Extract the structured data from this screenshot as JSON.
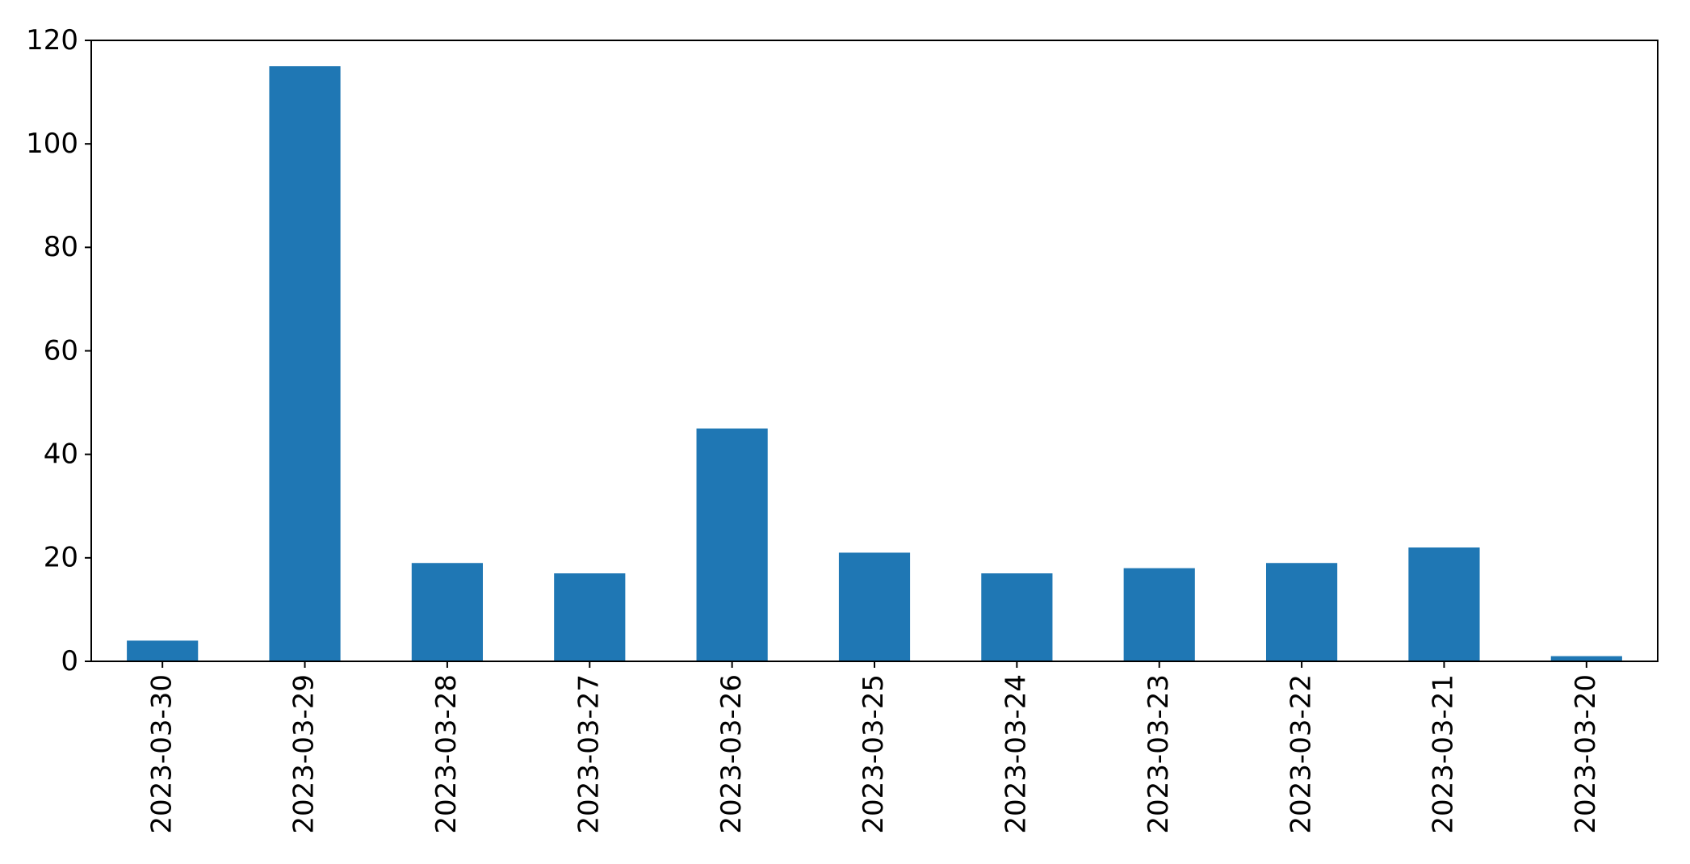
{
  "figure": {
    "background": "#ffffff"
  },
  "chart_data": {
    "type": "bar",
    "categories": [
      "2023-03-30",
      "2023-03-29",
      "2023-03-28",
      "2023-03-27",
      "2023-03-26",
      "2023-03-25",
      "2023-03-24",
      "2023-03-23",
      "2023-03-22",
      "2023-03-21",
      "2023-03-20"
    ],
    "values": [
      4,
      115,
      19,
      17,
      45,
      21,
      17,
      18,
      19,
      22,
      1
    ],
    "title": "",
    "xlabel": "",
    "ylabel": "",
    "ylim": [
      0,
      120
    ],
    "yticks": [
      0,
      20,
      40,
      60,
      80,
      100,
      120
    ],
    "x_tick_rotation": 90,
    "bar_color": "#1f77b4",
    "axis_color": "#000000",
    "text_color": "#000000",
    "plot_background": "#ffffff",
    "grid": false,
    "legend": null,
    "bar_width_fraction": 0.5
  }
}
